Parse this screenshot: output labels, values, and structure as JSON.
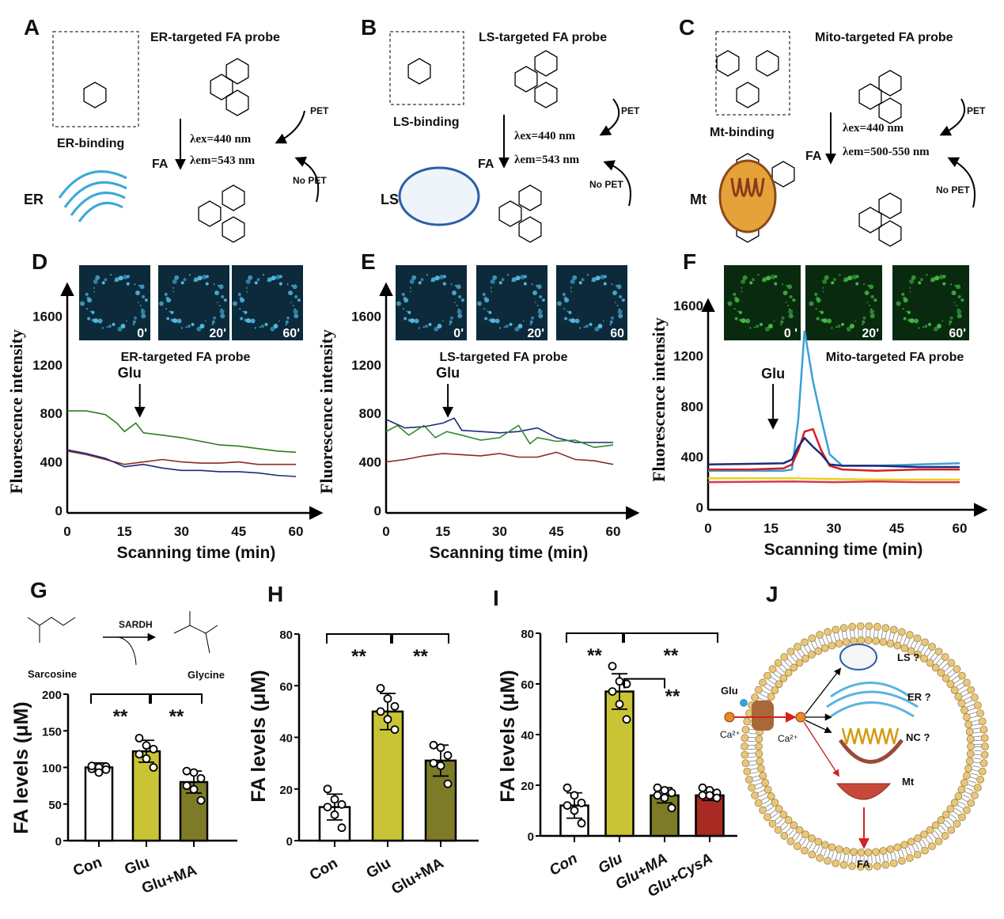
{
  "panels": {
    "A": {
      "label": "A",
      "title": "ER-targeted FA probe",
      "binding": "ER-binding",
      "lex": "λex=440 nm",
      "lem": "λem=543 nm",
      "fa": "FA",
      "organelle": "ER",
      "pet": "PET",
      "no_pet": "No PET"
    },
    "B": {
      "label": "B",
      "title": "LS-targeted FA probe",
      "binding": "LS-binding",
      "lex": "λex=440 nm",
      "lem": "λem=543 nm",
      "fa": "FA",
      "organelle": "LS",
      "pet": "PET",
      "no_pet": "No PET"
    },
    "C": {
      "label": "C",
      "title": "Mito-targeted FA probe",
      "binding": "Mt-binding",
      "lex": "λex=440 nm",
      "lem": "λem=500-550 nm",
      "fa": "FA",
      "organelle": "Mt",
      "pet": "PET",
      "no_pet": "No PET"
    },
    "G_scheme": {
      "reactant": "Sarcosine",
      "enzyme": "SARDH",
      "product": "Glycine"
    },
    "J": {
      "label": "J",
      "glu": "Glu",
      "ca_out": "Ca²⁺",
      "ca_in": "Ca²⁺",
      "ls": "LS ?",
      "er": "ER ?",
      "nc": "NC ?",
      "mt": "Mt",
      "fa": "FA"
    }
  },
  "chart_data": [
    {
      "panel": "D",
      "type": "line",
      "title": "ER-targeted FA probe",
      "xlabel": "Scanning time (min)",
      "ylabel": "Fluorescence intensity",
      "xlim": [
        0,
        60
      ],
      "ylim": [
        0,
        1800
      ],
      "xticks": [
        0,
        15,
        30,
        45,
        60
      ],
      "yticks": [
        0,
        400,
        800,
        1200,
        1600
      ],
      "annotation": "Glu",
      "annotation_x": 18,
      "inset_labels": [
        "0'",
        "20'",
        "60'"
      ],
      "series": [
        {
          "color": "#2e7d1e",
          "x": [
            0,
            5,
            10,
            13,
            15,
            18,
            20,
            25,
            30,
            35,
            40,
            45,
            50,
            55,
            60
          ],
          "y": [
            820,
            820,
            790,
            720,
            650,
            720,
            640,
            620,
            600,
            570,
            540,
            530,
            510,
            490,
            480
          ]
        },
        {
          "color": "#8b2a2a",
          "x": [
            0,
            5,
            10,
            15,
            20,
            25,
            30,
            35,
            40,
            45,
            50,
            55,
            60
          ],
          "y": [
            490,
            460,
            420,
            380,
            400,
            420,
            400,
            390,
            390,
            400,
            380,
            380,
            380
          ]
        },
        {
          "color": "#1e2a7a",
          "x": [
            0,
            5,
            10,
            15,
            20,
            25,
            30,
            35,
            40,
            45,
            50,
            55,
            60
          ],
          "y": [
            500,
            470,
            430,
            360,
            380,
            350,
            330,
            330,
            320,
            320,
            310,
            290,
            280
          ]
        }
      ]
    },
    {
      "panel": "E",
      "type": "line",
      "title": "LS-targeted FA probe",
      "xlabel": "Scanning time (min)",
      "ylabel": "Fluorescence intensity",
      "xlim": [
        0,
        60
      ],
      "ylim": [
        0,
        1800
      ],
      "xticks": [
        0,
        15,
        30,
        45,
        60
      ],
      "yticks": [
        0,
        400,
        800,
        1200,
        1600
      ],
      "annotation": "Glu",
      "annotation_x": 18,
      "inset_labels": [
        "0'",
        "20'",
        "60"
      ],
      "series": [
        {
          "color": "#1e2a7a",
          "x": [
            0,
            5,
            10,
            15,
            18,
            20,
            25,
            30,
            35,
            40,
            45,
            50,
            55,
            60
          ],
          "y": [
            750,
            680,
            690,
            720,
            760,
            660,
            650,
            640,
            650,
            680,
            600,
            560,
            560,
            560
          ]
        },
        {
          "color": "#2e8a2e",
          "x": [
            0,
            3,
            6,
            10,
            13,
            16,
            20,
            25,
            30,
            35,
            38,
            40,
            45,
            50,
            55,
            60
          ],
          "y": [
            650,
            700,
            620,
            700,
            600,
            650,
            620,
            580,
            600,
            700,
            550,
            600,
            570,
            580,
            520,
            540
          ]
        },
        {
          "color": "#8b2a2a",
          "x": [
            0,
            5,
            10,
            15,
            20,
            25,
            30,
            35,
            40,
            45,
            50,
            55,
            60
          ],
          "y": [
            400,
            420,
            450,
            470,
            460,
            450,
            470,
            440,
            440,
            480,
            420,
            410,
            380
          ]
        }
      ]
    },
    {
      "panel": "F",
      "type": "line",
      "title": "Mito-targeted FA probe",
      "xlabel": "Scanning time (min)",
      "ylabel": "Fluorescence intensity",
      "xlim": [
        0,
        63
      ],
      "ylim": [
        0,
        1750
      ],
      "xticks": [
        0,
        15,
        30,
        45,
        60
      ],
      "yticks": [
        0,
        400,
        800,
        1200,
        1600
      ],
      "annotation": "Glu",
      "annotation_x": 17,
      "inset_labels": [
        "0 '",
        "20'",
        "60'"
      ],
      "series": [
        {
          "color": "#3aa0d8",
          "x": [
            0,
            10,
            18,
            20,
            21.5,
            23,
            25,
            27,
            29,
            32,
            40,
            50,
            60
          ],
          "y": [
            290,
            290,
            290,
            300,
            700,
            1400,
            1000,
            700,
            420,
            330,
            330,
            340,
            350
          ]
        },
        {
          "color": "#d42020",
          "x": [
            0,
            10,
            18,
            20,
            21.5,
            23,
            25,
            27,
            29,
            32,
            40,
            50,
            60
          ],
          "y": [
            300,
            300,
            310,
            340,
            450,
            600,
            620,
            450,
            330,
            300,
            290,
            300,
            300
          ]
        },
        {
          "color": "#1e2a7a",
          "x": [
            0,
            10,
            18,
            20,
            21.5,
            23,
            25,
            27,
            29,
            32,
            40,
            50,
            60
          ],
          "y": [
            340,
            345,
            350,
            380,
            480,
            550,
            480,
            420,
            340,
            330,
            330,
            320,
            320
          ]
        },
        {
          "color": "#e8d020",
          "x": [
            0,
            20,
            30,
            40,
            50,
            60
          ],
          "y": [
            230,
            230,
            225,
            220,
            220,
            220
          ]
        },
        {
          "color": "#d83a4a",
          "x": [
            0,
            20,
            30,
            40,
            50,
            60
          ],
          "y": [
            200,
            205,
            200,
            205,
            200,
            200
          ]
        }
      ]
    },
    {
      "panel": "G",
      "type": "bar",
      "ylabel": "FA levels (μM)",
      "ylim": [
        0,
        200
      ],
      "yticks": [
        0,
        50,
        100,
        150,
        200
      ],
      "categories": [
        "Con",
        "Glu",
        "Glu+MA"
      ],
      "values": [
        100,
        122,
        80
      ],
      "errors": [
        6,
        15,
        15
      ],
      "colors": [
        "#ffffff",
        "#c9c435",
        "#7d7a28"
      ],
      "points": [
        [
          98,
          100,
          101,
          102,
          93,
          97
        ],
        [
          140,
          130,
          125,
          118,
          112,
          100
        ],
        [
          95,
          93,
          85,
          75,
          70,
          55
        ]
      ],
      "significance": [
        {
          "from": 0,
          "to": 1,
          "label": "**"
        },
        {
          "from": 1,
          "to": 2,
          "label": "**"
        }
      ]
    },
    {
      "panel": "H",
      "type": "bar",
      "ylabel": "FA levels (μM)",
      "ylim": [
        0,
        80
      ],
      "yticks": [
        0,
        20,
        40,
        60,
        80
      ],
      "categories": [
        "Con",
        "Glu",
        "Glu+MA"
      ],
      "values": [
        13,
        50,
        31
      ],
      "errors": [
        5,
        7,
        6
      ],
      "colors": [
        "#ffffff",
        "#c9c435",
        "#7d7a28"
      ],
      "points": [
        [
          20,
          16,
          14,
          13,
          10,
          5
        ],
        [
          59,
          55,
          52,
          50,
          47,
          43
        ],
        [
          37,
          36,
          33,
          30,
          29,
          22
        ]
      ],
      "significance": [
        {
          "from": 0,
          "to": 1,
          "label": "**"
        },
        {
          "from": 1,
          "to": 2,
          "label": "**"
        }
      ]
    },
    {
      "panel": "I",
      "type": "bar",
      "ylabel": "FA levels (μM)",
      "ylim": [
        0,
        80
      ],
      "yticks": [
        0,
        20,
        40,
        60,
        80
      ],
      "categories": [
        "Con",
        "Glu",
        "Glu+MA",
        "Glu+CysA"
      ],
      "values": [
        12,
        57,
        16,
        16
      ],
      "errors": [
        5,
        7,
        3,
        2
      ],
      "colors": [
        "#ffffff",
        "#c9c435",
        "#7d7a28",
        "#a82a22"
      ],
      "points": [
        [
          19,
          16,
          13,
          12,
          10,
          5
        ],
        [
          67,
          61,
          60,
          57,
          52,
          46
        ],
        [
          19,
          18,
          17,
          16,
          15,
          11
        ],
        [
          19,
          18,
          17,
          16,
          16,
          15
        ]
      ],
      "significance": [
        {
          "from": 0,
          "to": 1,
          "label": "**"
        },
        {
          "from": 1,
          "to": 3,
          "label": "**"
        },
        {
          "from": 1,
          "to": 2,
          "label": "**"
        }
      ]
    }
  ],
  "colors": {
    "bar_con": "#ffffff",
    "bar_glu": "#c9c435",
    "bar_ma": "#7d7a28",
    "bar_cysa": "#a82a22",
    "membrane": "#e8c77a"
  }
}
